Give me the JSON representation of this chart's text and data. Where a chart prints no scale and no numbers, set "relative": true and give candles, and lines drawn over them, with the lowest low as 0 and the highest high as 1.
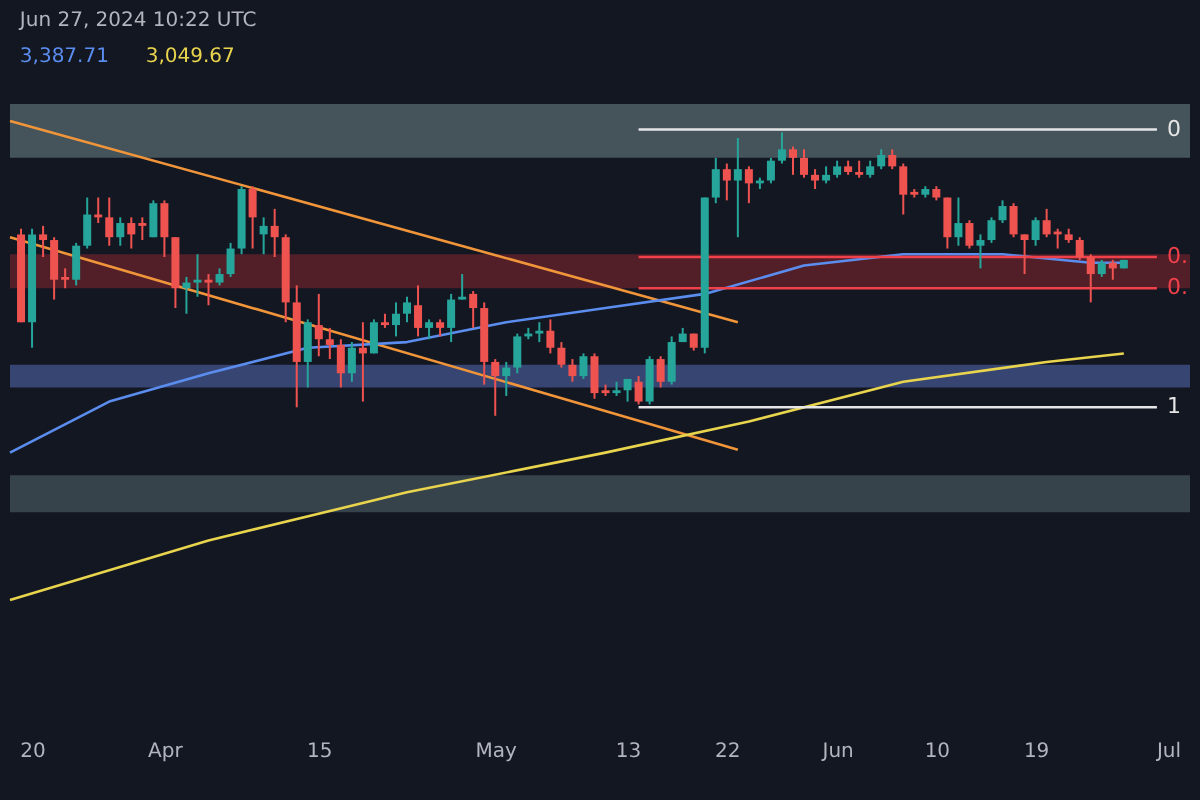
{
  "chart_data": {
    "type": "candlestick",
    "relative": true,
    "legend": "top left",
    "grid": false,
    "annotations": [
      "Jun 27, 2024 10:22 UTC"
    ],
    "xlim": [
      "2024-03-18",
      "2024-07-03"
    ],
    "xticks": [
      {
        "value": "2024-03-20",
        "label": "20"
      },
      {
        "value": "2024-04-01",
        "label": "Apr"
      },
      {
        "value": "2024-04-15",
        "label": "15"
      },
      {
        "value": "2024-05-01",
        "label": "May"
      },
      {
        "value": "2024-05-13",
        "label": "13"
      },
      {
        "value": "2024-05-22",
        "label": "22"
      },
      {
        "value": "2024-06-01",
        "label": "Jun"
      },
      {
        "value": "2024-06-10",
        "label": "10"
      },
      {
        "value": "2024-06-19",
        "label": "19"
      },
      {
        "value": "2024-07-01",
        "label": "Jul"
      }
    ],
    "x": [
      "2024-03-19",
      "2024-03-20",
      "2024-03-21",
      "2024-03-22",
      "2024-03-23",
      "2024-03-24",
      "2024-03-25",
      "2024-03-26",
      "2024-03-27",
      "2024-03-28",
      "2024-03-29",
      "2024-03-30",
      "2024-03-31",
      "2024-04-01",
      "2024-04-02",
      "2024-04-03",
      "2024-04-04",
      "2024-04-05",
      "2024-04-06",
      "2024-04-07",
      "2024-04-08",
      "2024-04-09",
      "2024-04-10",
      "2024-04-11",
      "2024-04-12",
      "2024-04-13",
      "2024-04-14",
      "2024-04-15",
      "2024-04-16",
      "2024-04-17",
      "2024-04-18",
      "2024-04-19",
      "2024-04-20",
      "2024-04-21",
      "2024-04-22",
      "2024-04-23",
      "2024-04-24",
      "2024-04-25",
      "2024-04-26",
      "2024-04-27",
      "2024-04-28",
      "2024-04-29",
      "2024-04-30",
      "2024-05-01",
      "2024-05-02",
      "2024-05-03",
      "2024-05-04",
      "2024-05-05",
      "2024-05-06",
      "2024-05-07",
      "2024-05-08",
      "2024-05-09",
      "2024-05-10",
      "2024-05-11",
      "2024-05-12",
      "2024-05-13",
      "2024-05-14",
      "2024-05-15",
      "2024-05-16",
      "2024-05-17",
      "2024-05-18",
      "2024-05-19",
      "2024-05-20",
      "2024-05-21",
      "2024-05-22",
      "2024-05-23",
      "2024-05-24",
      "2024-05-25",
      "2024-05-26",
      "2024-05-27",
      "2024-05-28",
      "2024-05-29",
      "2024-05-30",
      "2024-05-31",
      "2024-06-01",
      "2024-06-02",
      "2024-06-03",
      "2024-06-04",
      "2024-06-05",
      "2024-06-06",
      "2024-06-07",
      "2024-06-08",
      "2024-06-09",
      "2024-06-10",
      "2024-06-11",
      "2024-06-12",
      "2024-06-13",
      "2024-06-14",
      "2024-06-15",
      "2024-06-16",
      "2024-06-17",
      "2024-06-18",
      "2024-06-19",
      "2024-06-20",
      "2024-06-21",
      "2024-06-22",
      "2024-06-23",
      "2024-06-24",
      "2024-06-25",
      "2024-06-26",
      "2024-06-27"
    ],
    "ohlc": [
      [
        0.64,
        0.66,
        0.33,
        0.33
      ],
      [
        0.33,
        0.66,
        0.24,
        0.64
      ],
      [
        0.64,
        0.67,
        0.56,
        0.62
      ],
      [
        0.62,
        0.63,
        0.41,
        0.48
      ],
      [
        0.49,
        0.52,
        0.45,
        0.48
      ],
      [
        0.48,
        0.61,
        0.46,
        0.6
      ],
      [
        0.6,
        0.77,
        0.59,
        0.71
      ],
      [
        0.71,
        0.77,
        0.68,
        0.7
      ],
      [
        0.7,
        0.77,
        0.6,
        0.63
      ],
      [
        0.63,
        0.7,
        0.6,
        0.68
      ],
      [
        0.68,
        0.7,
        0.59,
        0.64
      ],
      [
        0.68,
        0.7,
        0.62,
        0.67
      ],
      [
        0.63,
        0.76,
        0.63,
        0.75
      ],
      [
        0.75,
        0.76,
        0.56,
        0.63
      ],
      [
        0.63,
        0.63,
        0.38,
        0.45
      ],
      [
        0.45,
        0.49,
        0.36,
        0.47
      ],
      [
        0.47,
        0.57,
        0.42,
        0.48
      ],
      [
        0.48,
        0.5,
        0.39,
        0.47
      ],
      [
        0.47,
        0.52,
        0.46,
        0.5
      ],
      [
        0.5,
        0.61,
        0.49,
        0.59
      ],
      [
        0.59,
        0.81,
        0.57,
        0.8
      ],
      [
        0.8,
        0.81,
        0.59,
        0.7
      ],
      [
        0.64,
        0.7,
        0.57,
        0.67
      ],
      [
        0.67,
        0.73,
        0.56,
        0.63
      ],
      [
        0.63,
        0.64,
        0.33,
        0.4
      ],
      [
        0.4,
        0.46,
        0.03,
        0.19
      ],
      [
        0.19,
        0.34,
        0.1,
        0.33
      ],
      [
        0.32,
        0.43,
        0.21,
        0.27
      ],
      [
        0.27,
        0.31,
        0.2,
        0.25
      ],
      [
        0.25,
        0.27,
        0.1,
        0.15
      ],
      [
        0.15,
        0.26,
        0.12,
        0.24
      ],
      [
        0.24,
        0.33,
        0.05,
        0.22
      ],
      [
        0.22,
        0.34,
        0.22,
        0.33
      ],
      [
        0.33,
        0.36,
        0.31,
        0.32
      ],
      [
        0.32,
        0.4,
        0.28,
        0.36
      ],
      [
        0.36,
        0.42,
        0.33,
        0.4
      ],
      [
        0.39,
        0.46,
        0.28,
        0.31
      ],
      [
        0.31,
        0.34,
        0.27,
        0.33
      ],
      [
        0.33,
        0.34,
        0.28,
        0.31
      ],
      [
        0.31,
        0.43,
        0.26,
        0.41
      ],
      [
        0.41,
        0.5,
        0.41,
        0.42
      ],
      [
        0.43,
        0.44,
        0.31,
        0.38
      ],
      [
        0.38,
        0.4,
        0.11,
        0.19
      ],
      [
        0.19,
        0.2,
        0,
        0.14
      ],
      [
        0.14,
        0.19,
        0.07,
        0.17
      ],
      [
        0.17,
        0.29,
        0.15,
        0.28
      ],
      [
        0.28,
        0.31,
        0.27,
        0.29
      ],
      [
        0.29,
        0.33,
        0.26,
        0.3
      ],
      [
        0.3,
        0.34,
        0.22,
        0.24
      ],
      [
        0.24,
        0.26,
        0.17,
        0.18
      ],
      [
        0.18,
        0.2,
        0.12,
        0.14
      ],
      [
        0.14,
        0.22,
        0.13,
        0.21
      ],
      [
        0.21,
        0.22,
        0.06,
        0.08
      ],
      [
        0.09,
        0.11,
        0.07,
        0.08
      ],
      [
        0.08,
        0.12,
        0.07,
        0.09
      ],
      [
        0.09,
        0.13,
        0.05,
        0.13
      ],
      [
        0.12,
        0.14,
        0.04,
        0.05
      ],
      [
        0.05,
        0.21,
        0.04,
        0.2
      ],
      [
        0.2,
        0.21,
        0.1,
        0.12
      ],
      [
        0.12,
        0.28,
        0.11,
        0.26
      ],
      [
        0.26,
        0.31,
        0.26,
        0.29
      ],
      [
        0.29,
        0.29,
        0.23,
        0.24
      ],
      [
        0.24,
        0.77,
        0.22,
        0.77
      ],
      [
        0.77,
        0.91,
        0.75,
        0.87
      ],
      [
        0.87,
        0.89,
        0.76,
        0.83
      ],
      [
        0.83,
        0.98,
        0.63,
        0.87
      ],
      [
        0.87,
        0.88,
        0.75,
        0.82
      ],
      [
        0.82,
        0.84,
        0.8,
        0.83
      ],
      [
        0.83,
        0.91,
        0.82,
        0.9
      ],
      [
        0.9,
        1,
        0.89,
        0.94
      ],
      [
        0.94,
        0.95,
        0.85,
        0.91
      ],
      [
        0.91,
        0.94,
        0.84,
        0.85
      ],
      [
        0.85,
        0.87,
        0.8,
        0.83
      ],
      [
        0.83,
        0.88,
        0.82,
        0.85
      ],
      [
        0.85,
        0.9,
        0.84,
        0.88
      ],
      [
        0.88,
        0.9,
        0.85,
        0.86
      ],
      [
        0.86,
        0.9,
        0.84,
        0.85
      ],
      [
        0.85,
        0.9,
        0.84,
        0.88
      ],
      [
        0.88,
        0.94,
        0.87,
        0.92
      ],
      [
        0.92,
        0.94,
        0.87,
        0.88
      ],
      [
        0.88,
        0.89,
        0.71,
        0.78
      ],
      [
        0.79,
        0.8,
        0.77,
        0.78
      ],
      [
        0.78,
        0.81,
        0.77,
        0.8
      ],
      [
        0.8,
        0.81,
        0.76,
        0.77
      ],
      [
        0.77,
        0.77,
        0.59,
        0.63
      ],
      [
        0.63,
        0.77,
        0.6,
        0.68
      ],
      [
        0.68,
        0.69,
        0.59,
        0.6
      ],
      [
        0.6,
        0.64,
        0.52,
        0.62
      ],
      [
        0.62,
        0.7,
        0.61,
        0.69
      ],
      [
        0.69,
        0.76,
        0.68,
        0.74
      ],
      [
        0.74,
        0.75,
        0.63,
        0.64
      ],
      [
        0.64,
        0.64,
        0.5,
        0.62
      ],
      [
        0.62,
        0.7,
        0.6,
        0.69
      ],
      [
        0.69,
        0.73,
        0.63,
        0.64
      ],
      [
        0.65,
        0.66,
        0.59,
        0.64
      ],
      [
        0.64,
        0.66,
        0.61,
        0.62
      ],
      [
        0.62,
        0.63,
        0.55,
        0.56
      ],
      [
        0.56,
        0.57,
        0.4,
        0.5
      ],
      [
        0.5,
        0.55,
        0.49,
        0.54
      ],
      [
        0.54,
        0.55,
        0.48,
        0.52
      ],
      [
        0.52,
        0.55,
        0.52,
        0.55
      ]
    ],
    "bands": [
      {
        "axis": "y",
        "from": 0.91,
        "to": 1.1,
        "color": "#4b5a62"
      },
      {
        "axis": "y",
        "from": 0.45,
        "to": 0.57,
        "color": "#5a2029"
      },
      {
        "axis": "y",
        "from": 0.1,
        "to": 0.18,
        "color": "#3c4a7c"
      },
      {
        "axis": "y",
        "from": -0.34,
        "to": -0.21,
        "color": "#3c4850"
      }
    ],
    "series": [
      {
        "type": "line",
        "color": "#f0953a",
        "x": [
          "2024-03-18",
          "2024-05-23"
        ],
        "values": [
          1.04,
          0.33
        ]
      },
      {
        "type": "line",
        "color": "#f0953a",
        "x": [
          "2024-03-18",
          "2024-05-23"
        ],
        "values": [
          0.63,
          -0.12
        ]
      },
      {
        "type": "line",
        "name": "3,387.71",
        "color": "#5b8def",
        "x": [
          "2024-03-18",
          "2024-03-27",
          "2024-04-05",
          "2024-04-14",
          "2024-04-23",
          "2024-05-02",
          "2024-05-11",
          "2024-05-20",
          "2024-05-29",
          "2024-06-07",
          "2024-06-16",
          "2024-06-24",
          "2024-06-27"
        ],
        "values": [
          -0.13,
          0.05,
          0.15,
          0.24,
          0.26,
          0.33,
          0.38,
          0.43,
          0.53,
          0.57,
          0.57,
          0.54,
          0.54
        ]
      },
      {
        "type": "line",
        "name": "3,049.67",
        "color": "#e8d44d",
        "x": [
          "2024-03-18",
          "2024-04-05",
          "2024-04-23",
          "2024-05-11",
          "2024-05-24",
          "2024-06-07",
          "2024-06-20",
          "2024-06-27"
        ],
        "values": [
          -0.65,
          -0.44,
          -0.27,
          -0.13,
          -0.02,
          0.12,
          0.19,
          0.22
        ]
      },
      {
        "type": "line",
        "name": "0",
        "color": "#e6e6e6",
        "x": [
          "2024-05-14",
          "2024-06-30"
        ],
        "values": [
          1.01,
          1.01
        ]
      },
      {
        "type": "line",
        "name": "0.",
        "color": "#f0404a",
        "x": [
          "2024-05-14",
          "2024-06-30"
        ],
        "values": [
          0.56,
          0.56
        ]
      },
      {
        "type": "line",
        "name": "0.",
        "color": "#f0404a",
        "x": [
          "2024-05-14",
          "2024-06-30"
        ],
        "values": [
          0.45,
          0.45
        ]
      },
      {
        "type": "line",
        "name": "1",
        "color": "#e6e6e6",
        "x": [
          "2024-05-14",
          "2024-06-30"
        ],
        "values": [
          0.03,
          0.03
        ]
      }
    ]
  }
}
